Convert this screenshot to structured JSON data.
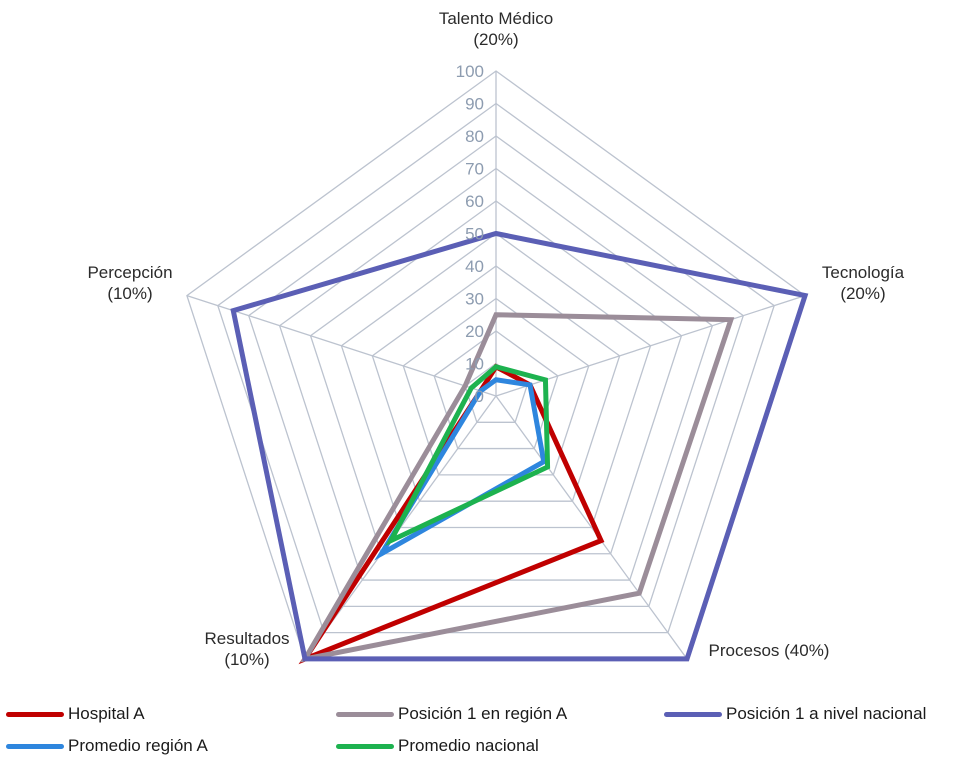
{
  "chart_data": {
    "type": "radar",
    "axes": [
      {
        "label": "Talento Médico",
        "sub": "(20%)"
      },
      {
        "label": "Tecnología",
        "sub": "(20%)"
      },
      {
        "label": "Procesos (40%)",
        "sub": ""
      },
      {
        "label": "Resultados",
        "sub": "(10%)"
      },
      {
        "label": "Percepción",
        "sub": "(10%)"
      }
    ],
    "rlim": [
      0,
      100
    ],
    "ticks": [
      0,
      10,
      20,
      30,
      40,
      50,
      60,
      70,
      80,
      90,
      100
    ],
    "grid": true,
    "series": [
      {
        "name": "Hospital A",
        "color": "#c00000",
        "values": [
          9,
          11,
          55,
          100,
          5
        ]
      },
      {
        "name": "Posición 1 en región A",
        "color": "#9b8d99",
        "values": [
          25,
          76,
          75,
          100,
          10
        ]
      },
      {
        "name": "Posición 1 a nivel nacional",
        "color": "#5b5fb5",
        "values": [
          50,
          100,
          100,
          100,
          85
        ]
      },
      {
        "name": "Promedio región A",
        "color": "#2e86de",
        "values": [
          5,
          11,
          25,
          60,
          5
        ]
      },
      {
        "name": "Promedio nacional",
        "color": "#1db24f",
        "values": [
          9,
          16,
          27,
          55,
          8
        ]
      }
    ],
    "legend_position": "bottom"
  }
}
